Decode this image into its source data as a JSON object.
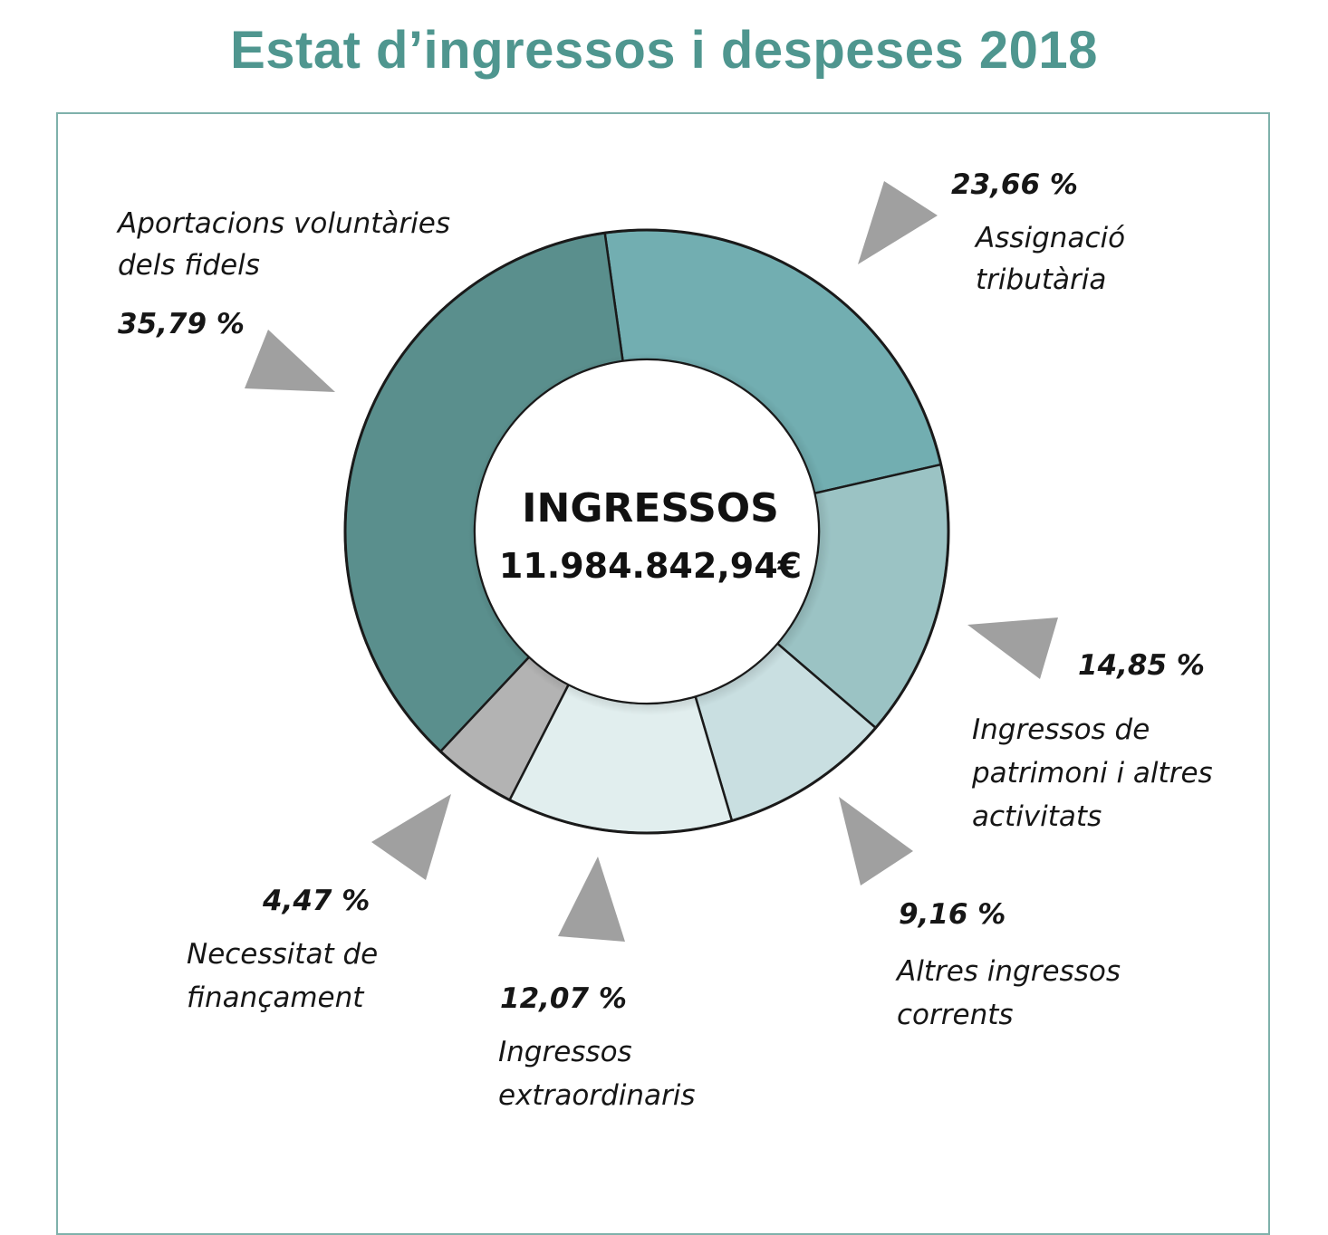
{
  "page_title": "Estat d’ingressos i despeses 2018",
  "chart_data": {
    "type": "pie",
    "title": "Estat d’ingressos i despeses 2018",
    "center_title": "INGRESSOS",
    "center_value": "11.984.842,94€",
    "categories": [
      "Aportacions voluntàries dels fidels",
      "Assignació tributària",
      "Ingressos de patrimoni i altres activitats",
      "Altres ingressos corrents",
      "Ingressos extraordinaris",
      "Necessitat de finançament"
    ],
    "values": [
      35.79,
      23.66,
      14.85,
      9.16,
      12.07,
      4.47
    ],
    "value_labels": [
      "35,79 %",
      "23,66 %",
      "14,85 %",
      "9,16 %",
      "12,07 %",
      "4,47 %"
    ],
    "label_lines": [
      [
        "Aportacions voluntàries",
        "dels fidels"
      ],
      [
        "Assignació",
        "tributària"
      ],
      [
        "Ingressos de",
        "patrimoni i altres",
        "activitats"
      ],
      [
        "Altres ingressos",
        "corrents"
      ],
      [
        "Ingressos",
        "extraordinaris"
      ],
      [
        "Necessitat de",
        "finançament"
      ]
    ],
    "colors": [
      "#5a8f8d",
      "#72aeb1",
      "#9bc3c4",
      "#c9dfe1",
      "#e1eeee",
      "#b3b3b3"
    ],
    "arrow_color": "#a0a0a0"
  }
}
